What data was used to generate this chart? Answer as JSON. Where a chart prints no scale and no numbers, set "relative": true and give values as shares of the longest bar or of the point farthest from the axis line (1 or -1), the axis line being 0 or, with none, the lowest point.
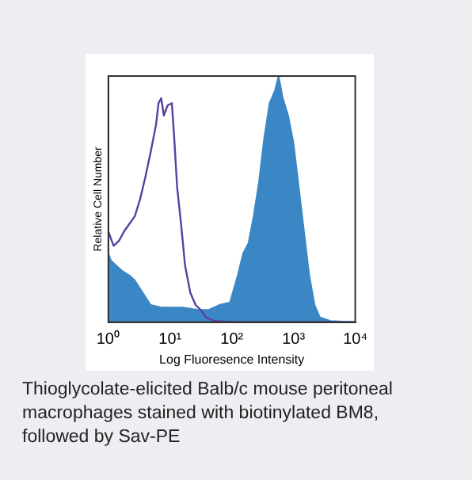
{
  "chart_data": {
    "type": "line",
    "relative": true,
    "xlabel": "Log Fluoresence Intensity",
    "ylabel": "Relative Cell Number",
    "log": "x",
    "xlim": [
      1,
      10000
    ],
    "xticks": [
      {
        "value": 1,
        "label": "10⁰"
      },
      {
        "value": 10,
        "label": "10¹"
      },
      {
        "value": 100,
        "label": "10²"
      },
      {
        "value": 1000,
        "label": "10³"
      },
      {
        "value": 10000,
        "label": "10⁴"
      }
    ],
    "grid": false,
    "legend": false,
    "marker": "none",
    "annotations": [
      "Thioglycolate-elicited Balb/c mouse peritoneal macrophages stained with biotinylated BM8, followed by Sav-PE"
    ],
    "series": [
      {
        "type": "area",
        "color": "#3b87c6",
        "x": [
          1,
          1.1,
          1.34,
          1.64,
          2.2,
          2.68,
          3.6,
          4.84,
          7.19,
          15.8,
          28.6,
          42.4,
          62.9,
          93.3,
          125,
          153,
          186,
          226,
          276,
          336,
          410,
          499,
          573,
          671,
          817,
          995,
          1213,
          1476,
          1799,
          2190,
          2669,
          3957,
          10000
        ],
        "values": [
          0.28,
          0.25,
          0.23,
          0.21,
          0.19,
          0.17,
          0.12,
          0.07,
          0.06,
          0.06,
          0.05,
          0.05,
          0.07,
          0.08,
          0.19,
          0.28,
          0.32,
          0.43,
          0.57,
          0.75,
          0.89,
          0.94,
          1,
          0.91,
          0.84,
          0.73,
          0.55,
          0.37,
          0.19,
          0.07,
          0.02,
          0.005,
          0
        ]
      },
      {
        "type": "line",
        "color": "#5a3fa3",
        "x": [
          1,
          1.1,
          1.22,
          1.48,
          1.81,
          2.2,
          2.68,
          3.27,
          3.98,
          4.84,
          5.9,
          6.51,
          7.19,
          7.93,
          9.1,
          10.7,
          11.8,
          13,
          15.2,
          17.5,
          21.3,
          25.9,
          31.5,
          38.4,
          51.6,
          114,
          817,
          10000
        ],
        "values": [
          0.37,
          0.34,
          0.31,
          0.33,
          0.37,
          0.4,
          0.43,
          0.5,
          0.59,
          0.69,
          0.8,
          0.89,
          0.91,
          0.84,
          0.88,
          0.89,
          0.73,
          0.55,
          0.39,
          0.23,
          0.12,
          0.07,
          0.05,
          0.02,
          0.005,
          0,
          0,
          0
        ]
      }
    ]
  }
}
